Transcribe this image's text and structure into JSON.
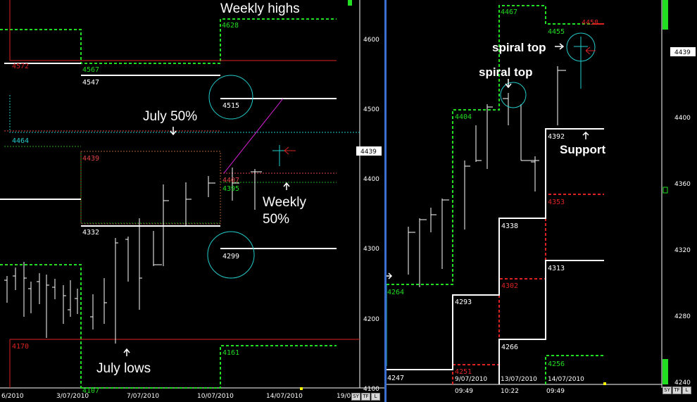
{
  "left_panel": {
    "y_ticks": [
      "4600",
      "4500",
      "4400",
      "4300",
      "4200",
      "4100"
    ],
    "current_price": "4439",
    "x_labels": [
      "6/2010",
      "3/07/2010",
      "7/07/2010",
      "10/07/2010",
      "14/07/2010",
      "19/0"
    ],
    "buttons": [
      "SY",
      "TF",
      "L"
    ],
    "annotations": {
      "weekly_highs": "Weekly highs",
      "july_50": "July 50%",
      "weekly_50_line1": "Weekly",
      "weekly_50_line2": "50%",
      "july_lows": "July lows"
    },
    "levels": {
      "l4628": "4628",
      "l4572": "4572",
      "l4567": "4567",
      "l4547": "4547",
      "l4515": "4515",
      "l4464": "4464",
      "l4439": "4439",
      "l4407": "4407",
      "l4395": "4395",
      "l4332": "4332",
      "l4299": "4299",
      "l4170": "4170",
      "l4161": "4161",
      "l4107": "4107"
    }
  },
  "right_panel": {
    "y_ticks": [
      "4400",
      "4360",
      "4320",
      "4280",
      "4240"
    ],
    "current_price": "4439",
    "x_labels": [
      "9/07/2010",
      "13/07/2010",
      "14/07/2010"
    ],
    "x_times": [
      "09:49",
      "10:22",
      "09:49"
    ],
    "buttons": [
      "SY",
      "TF",
      "L"
    ],
    "annotations": {
      "spiral_top_1": "spiral top",
      "spiral_top_2": "spiral top",
      "support": "Support"
    },
    "levels": {
      "r4467": "4467",
      "r4458": "4458",
      "r4455": "4455",
      "r4404": "4404",
      "r4392": "4392",
      "r4353": "4353",
      "r4338": "4338",
      "r4313": "4313",
      "r4302": "4302",
      "r4293": "4293",
      "r4266": "4266",
      "r4264": "4264",
      "r4256": "4256",
      "r4251": "4251",
      "r4247": "4247"
    }
  },
  "colors": {
    "green": "#22dd22",
    "red": "#dd2222",
    "cyan": "#22cccc",
    "white": "#ffffff",
    "magenta": "#dd22dd"
  },
  "chart_data": [
    {
      "type": "line",
      "title": "",
      "xlabel": "",
      "ylabel": "",
      "ylim": [
        4100,
        4640
      ],
      "x_tick_labels": [
        "6/2010",
        "3/07/2010",
        "7/07/2010",
        "10/07/2010",
        "14/07/2010"
      ],
      "price_levels": [
        4628,
        4572,
        4567,
        4547,
        4515,
        4464,
        4439,
        4407,
        4395,
        4332,
        4299,
        4170,
        4161,
        4107
      ],
      "current_price": 4439
    },
    {
      "type": "line",
      "title": "",
      "xlabel": "",
      "ylabel": "",
      "ylim": [
        4236,
        4480
      ],
      "x_tick_labels": [
        "9/07/2010",
        "13/07/2010",
        "14/07/2010"
      ],
      "price_levels": [
        4467,
        4458,
        4455,
        4404,
        4392,
        4353,
        4338,
        4313,
        4302,
        4293,
        4266,
        4264,
        4256,
        4251,
        4247
      ],
      "current_price": 4439
    }
  ]
}
